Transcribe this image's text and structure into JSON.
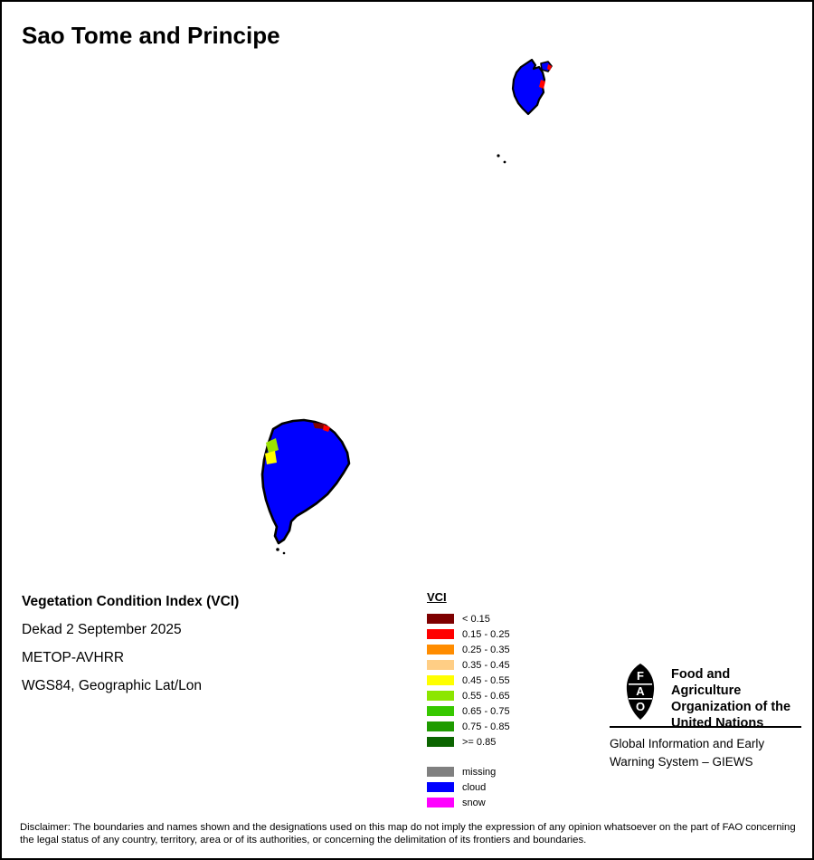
{
  "title": "Sao Tome and Principe",
  "map": {
    "colors": {
      "cloud": "#0000FF",
      "outline": "#000000",
      "red": "#FF0000",
      "dark_red": "#7E0000",
      "yellow": "#FFFF00",
      "yellow_green": "#9BE300"
    }
  },
  "meta": {
    "vci_title": "Vegetation Condition Index (VCI)",
    "dekad": "Dekad 2 September 2025",
    "sensor": "METOP-AVHRR",
    "projection": "WGS84, Geographic Lat/Lon"
  },
  "legend": {
    "title": "VCI",
    "classes": [
      {
        "label": "< 0.15",
        "color": "#7E0000"
      },
      {
        "label": "0.15 - 0.25",
        "color": "#FF0000"
      },
      {
        "label": "0.25 - 0.35",
        "color": "#FF8C00"
      },
      {
        "label": "0.35 - 0.45",
        "color": "#FFCE85"
      },
      {
        "label": "0.45 - 0.55",
        "color": "#FFFF00"
      },
      {
        "label": "0.55 - 0.65",
        "color": "#8CE600"
      },
      {
        "label": "0.65 - 0.75",
        "color": "#37C800"
      },
      {
        "label": "0.75 - 0.85",
        "color": "#1E9B00"
      },
      {
        "label": ">= 0.85",
        "color": "#0B6400"
      }
    ],
    "extra": [
      {
        "label": "missing",
        "color": "#808080"
      },
      {
        "label": "cloud",
        "color": "#0000FF"
      },
      {
        "label": "snow",
        "color": "#FF00FF"
      }
    ]
  },
  "footer": {
    "org_lines": [
      "Food and Agriculture",
      "Organization of the",
      "United Nations"
    ],
    "fao_letters": "FAO",
    "giews_lines": [
      "Global Information and Early",
      "Warning System – GIEWS"
    ],
    "disclaimer": "Disclaimer: The boundaries and names shown and the designations used on this map do not imply the expression of any opinion whatsoever on the part of FAO concerning the legal status of any country, territory, area or of its authorities, or concerning the delimitation of its frontiers and boundaries."
  }
}
